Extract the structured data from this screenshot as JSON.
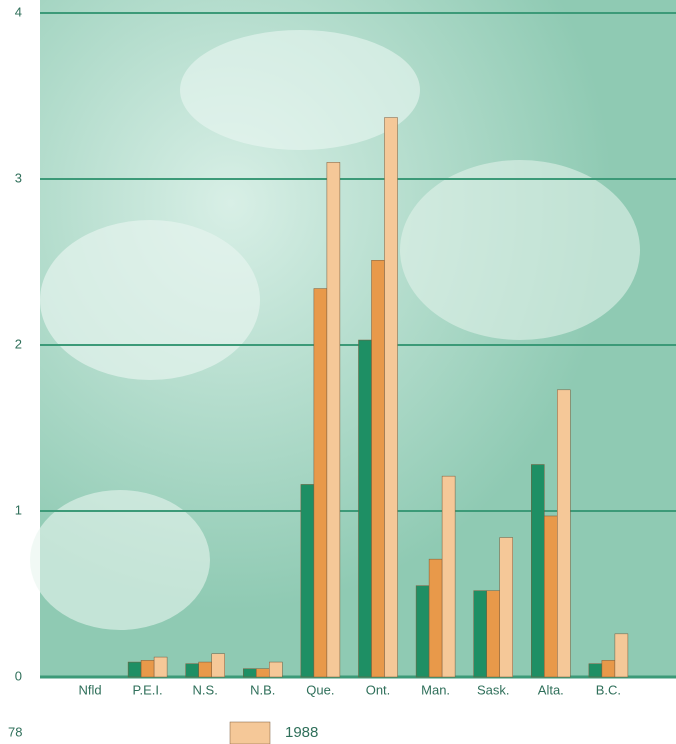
{
  "chart_data": {
    "type": "bar",
    "categories": [
      "Nfld",
      "P.E.I.",
      "N.S.",
      "N.B.",
      "Que.",
      "Ont.",
      "Man.",
      "Sask.",
      "Alta.",
      "B.C."
    ],
    "series": [
      {
        "color": "#1e8f64",
        "values": [
          0,
          0.09,
          0.08,
          0.05,
          1.16,
          2.03,
          0.55,
          0.52,
          1.28,
          0.08
        ]
      },
      {
        "color": "#e8994a",
        "values": [
          0,
          0.1,
          0.09,
          0.05,
          2.34,
          2.51,
          0.71,
          0.52,
          0.97,
          0.1
        ]
      },
      {
        "name": "1988",
        "color": "#f5c898",
        "values": [
          0,
          0.12,
          0.14,
          0.09,
          3.1,
          3.37,
          1.21,
          0.84,
          1.73,
          0.26
        ]
      }
    ],
    "ylim": [
      0,
      4
    ],
    "yticks": [
      0,
      1,
      2,
      3,
      4
    ],
    "grid": true
  },
  "page_number": "78"
}
